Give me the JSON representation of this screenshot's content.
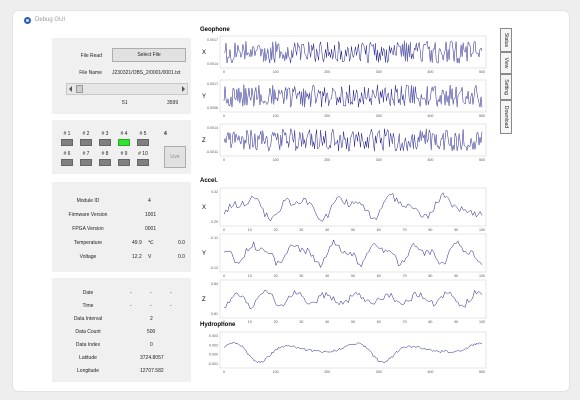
{
  "window": {
    "title": "Debug GUI"
  },
  "file": {
    "read_label": "File Read",
    "select_button": "Select File",
    "name_label": "File Name",
    "name_value": "J230321/OBS_2/0001/0001.txt",
    "slider_value": "51",
    "slider_max": "3599"
  },
  "modules": {
    "labels": [
      "# 1",
      "# 2",
      "# 3",
      "# 4",
      "# 5",
      "# 6",
      "# 7",
      "# 8",
      "# 9",
      "# 10"
    ],
    "active_index": 3,
    "count": "4",
    "live_button": "Live",
    "on_color": "#2ee52e",
    "off_color": "#808080"
  },
  "info": {
    "module_id": {
      "label": "Module ID",
      "value": "4"
    },
    "firmware": {
      "label": "Firmware Version",
      "value": "1001"
    },
    "fpga": {
      "label": "FPGA Version",
      "value": "0001"
    },
    "temperature": {
      "label": "Temperature",
      "value": "49.9",
      "unit": "℃",
      "extra": "0.0"
    },
    "voltage": {
      "label": "Voltage",
      "value": "12.2",
      "unit": "V",
      "extra": "0.0"
    }
  },
  "meta": {
    "date": {
      "label": "Date",
      "value": "-",
      "v2": "-",
      "v3": "-"
    },
    "time": {
      "label": "Time",
      "value": "-",
      "v2": "-",
      "v3": "-"
    },
    "interval": {
      "label": "Data Interval",
      "value": "2"
    },
    "count": {
      "label": "Data Count",
      "value": "500"
    },
    "index": {
      "label": "Data Index",
      "value": "0"
    },
    "latitude": {
      "label": "Latitude",
      "value": "3724.8057"
    },
    "longitude": {
      "label": "Longitude",
      "value": "12707.582"
    }
  },
  "tabs": [
    "Status",
    "View",
    "Setting",
    "Download"
  ],
  "sections": {
    "geophone": "Geophone",
    "accel": "Accel.",
    "hydrophone": "Hydrophone"
  },
  "line_color": "#1c1c8c",
  "chart_data": [
    {
      "type": "line",
      "name_label": "X",
      "yticks": [
        "0.0017",
        "0.0014"
      ],
      "xlim": [
        0,
        500
      ],
      "xticks": [
        "0",
        "100",
        "200",
        "300",
        "400",
        "500"
      ],
      "kind": "noise",
      "amplitude": 0.9,
      "seed": 11
    },
    {
      "type": "line",
      "name_label": "Y",
      "yticks": [
        "0.0017",
        "0.0006"
      ],
      "xlim": [
        0,
        500
      ],
      "xticks": [
        "0",
        "100",
        "200",
        "300",
        "400",
        "500"
      ],
      "kind": "noise",
      "amplitude": 0.9,
      "seed": 23
    },
    {
      "type": "line",
      "name_label": "Z",
      "yticks": [
        "0.0014",
        "-0.0011"
      ],
      "xlim": [
        0,
        500
      ],
      "xticks": [
        "0",
        "100",
        "200",
        "300",
        "400",
        "500"
      ],
      "kind": "noise",
      "amplitude": 0.9,
      "seed": 37
    },
    {
      "type": "line",
      "name_label": "X",
      "yticks": [
        "0.32",
        "0.29"
      ],
      "xlim": [
        0,
        100
      ],
      "xticks": [
        "0",
        "10",
        "20",
        "30",
        "40",
        "50",
        "60",
        "70",
        "80",
        "90",
        "100"
      ],
      "kind": "wave",
      "amplitude": 0.85,
      "seed": 5
    },
    {
      "type": "line",
      "name_label": "Y",
      "yticks": [
        "-0.11",
        "-0.12"
      ],
      "xlim": [
        0,
        100
      ],
      "xticks": [
        "0",
        "10",
        "20",
        "30",
        "40",
        "50",
        "60",
        "70",
        "80",
        "90",
        "100"
      ],
      "kind": "wave",
      "amplitude": 0.85,
      "seed": 9
    },
    {
      "type": "line",
      "name_label": "Z",
      "yticks": [
        "0.84",
        "0.81"
      ],
      "xlim": [
        0,
        100
      ],
      "xticks": [
        "0",
        "10",
        "20",
        "30",
        "40",
        "50",
        "60",
        "70",
        "80",
        "90",
        "100"
      ],
      "kind": "wave",
      "amplitude": 0.85,
      "seed": 17
    },
    {
      "type": "line",
      "name_label": "",
      "yticks": [
        "0.003",
        "0.002",
        "0.000",
        "-0.001"
      ],
      "xlim": [
        0,
        500
      ],
      "xticks": [
        "0",
        "100",
        "200",
        "300",
        "400",
        "500"
      ],
      "kind": "hydro",
      "amplitude": 0.85,
      "seed": 41
    }
  ]
}
